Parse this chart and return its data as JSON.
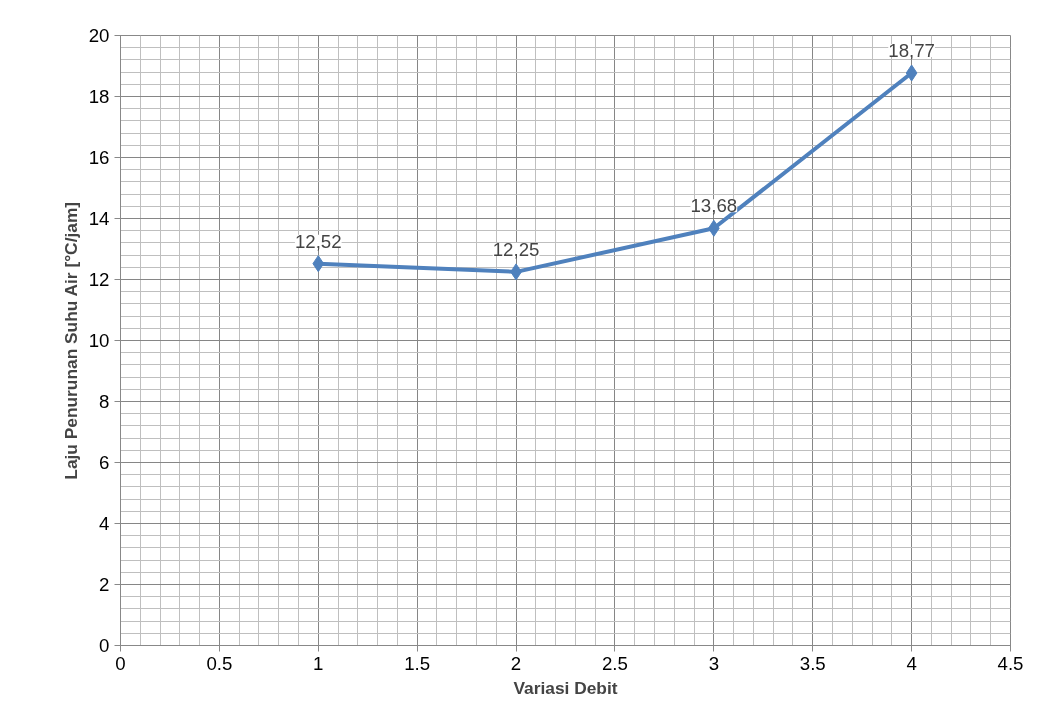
{
  "chart_data": {
    "type": "line",
    "xlabel": "Variasi Debit",
    "ylabel": "Laju Penurunan Suhu Air [°C/jam]",
    "x": [
      1,
      2,
      3,
      4
    ],
    "series": [
      {
        "color": "#4f81bd",
        "values": [
          12.52,
          12.25,
          13.68,
          18.77
        ],
        "value_labels": [
          "12,52",
          "12,25",
          "13,68",
          "18,77"
        ]
      }
    ],
    "xlim": [
      0,
      4.5
    ],
    "xticks": [
      0,
      0.5,
      1,
      1.5,
      2,
      2.5,
      3,
      3.5,
      4,
      4.5
    ],
    "ylim": [
      0,
      20
    ],
    "yticks": [
      0,
      2,
      4,
      6,
      8,
      10,
      12,
      14,
      16,
      18,
      20
    ],
    "grid": true,
    "marker": "diamond",
    "line_style": "solid"
  }
}
